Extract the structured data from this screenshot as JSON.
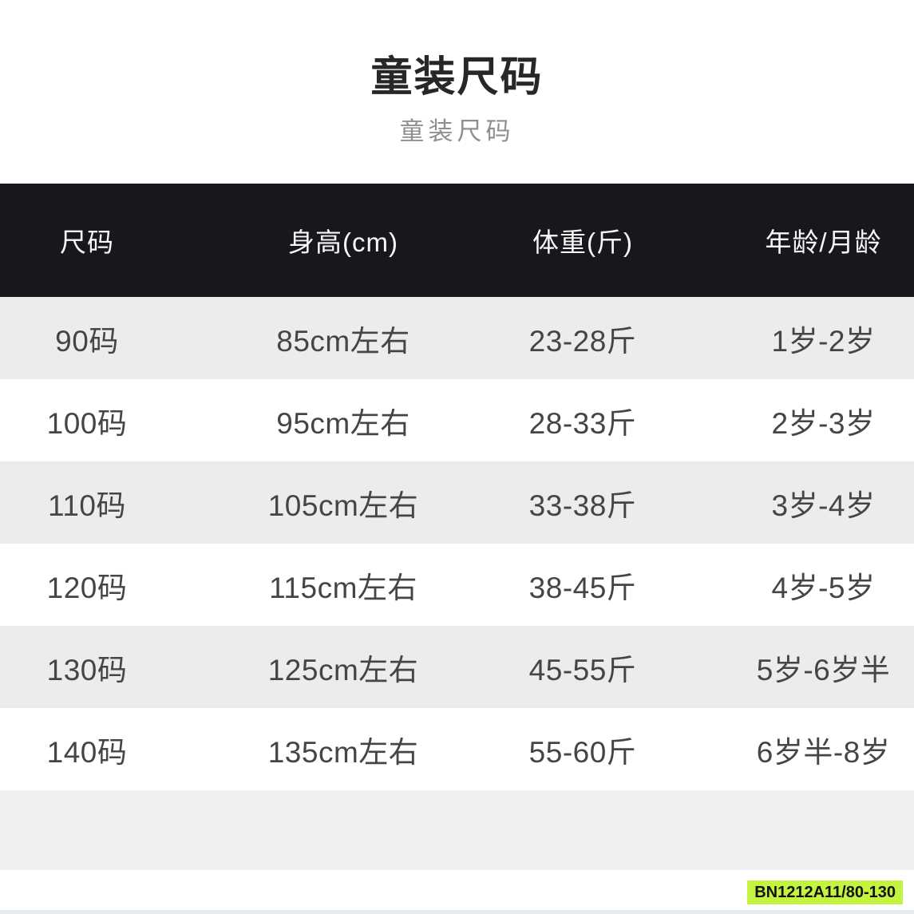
{
  "page": {
    "title": "童装尺码",
    "subtitle": "童装尺码"
  },
  "table": {
    "columns": [
      "尺码",
      "身高(cm)",
      "体重(斤)",
      "年龄/月龄"
    ],
    "rows": [
      [
        "90码",
        "85cm左右",
        "23-28斤",
        "1岁-2岁"
      ],
      [
        "100码",
        "95cm左右",
        "28-33斤",
        "2岁-3岁"
      ],
      [
        "110码",
        "105cm左右",
        "33-38斤",
        "3岁-4岁"
      ],
      [
        "120码",
        "115cm左右",
        "38-45斤",
        "4岁-5岁"
      ],
      [
        "130码",
        "125cm左右",
        "45-55斤",
        "5岁-6岁半"
      ],
      [
        "140码",
        "135cm左右",
        "55-60斤",
        "6岁半-8岁"
      ]
    ],
    "has_empty_trailing_row": true
  },
  "badge": {
    "label": "BN1212A11/80-130",
    "background": "#c3f440",
    "text_color": "#121212"
  },
  "colors": {
    "header_bg": "#17171c",
    "header_text": "#f7f7f7",
    "row_bg": "#ffffff",
    "row_alt_bg": "#ececec",
    "empty_row_bg": "#f0f0f0",
    "title_color": "#272727",
    "subtitle_color": "#8f8f8f",
    "cell_text": "#454545"
  },
  "chart_data": {
    "type": "table",
    "title": "童装尺码",
    "subtitle": "童装尺码",
    "columns": [
      "尺码",
      "身高(cm)",
      "体重(斤)",
      "年龄/月龄"
    ],
    "rows": [
      [
        "90码",
        "85cm左右",
        "23-28斤",
        "1岁-2岁"
      ],
      [
        "100码",
        "95cm左右",
        "28-33斤",
        "2岁-3岁"
      ],
      [
        "110码",
        "105cm左右",
        "33-38斤",
        "3岁-4岁"
      ],
      [
        "120码",
        "115cm左右",
        "38-45斤",
        "4岁-5岁"
      ],
      [
        "130码",
        "125cm左右",
        "45-55斤",
        "5岁-6岁半"
      ],
      [
        "140码",
        "135cm左右",
        "55-60斤",
        "6岁半-8岁"
      ]
    ],
    "layout_hints": {
      "header_style": "dark-band",
      "zebra_striping": true,
      "column_alignment": "center"
    }
  }
}
